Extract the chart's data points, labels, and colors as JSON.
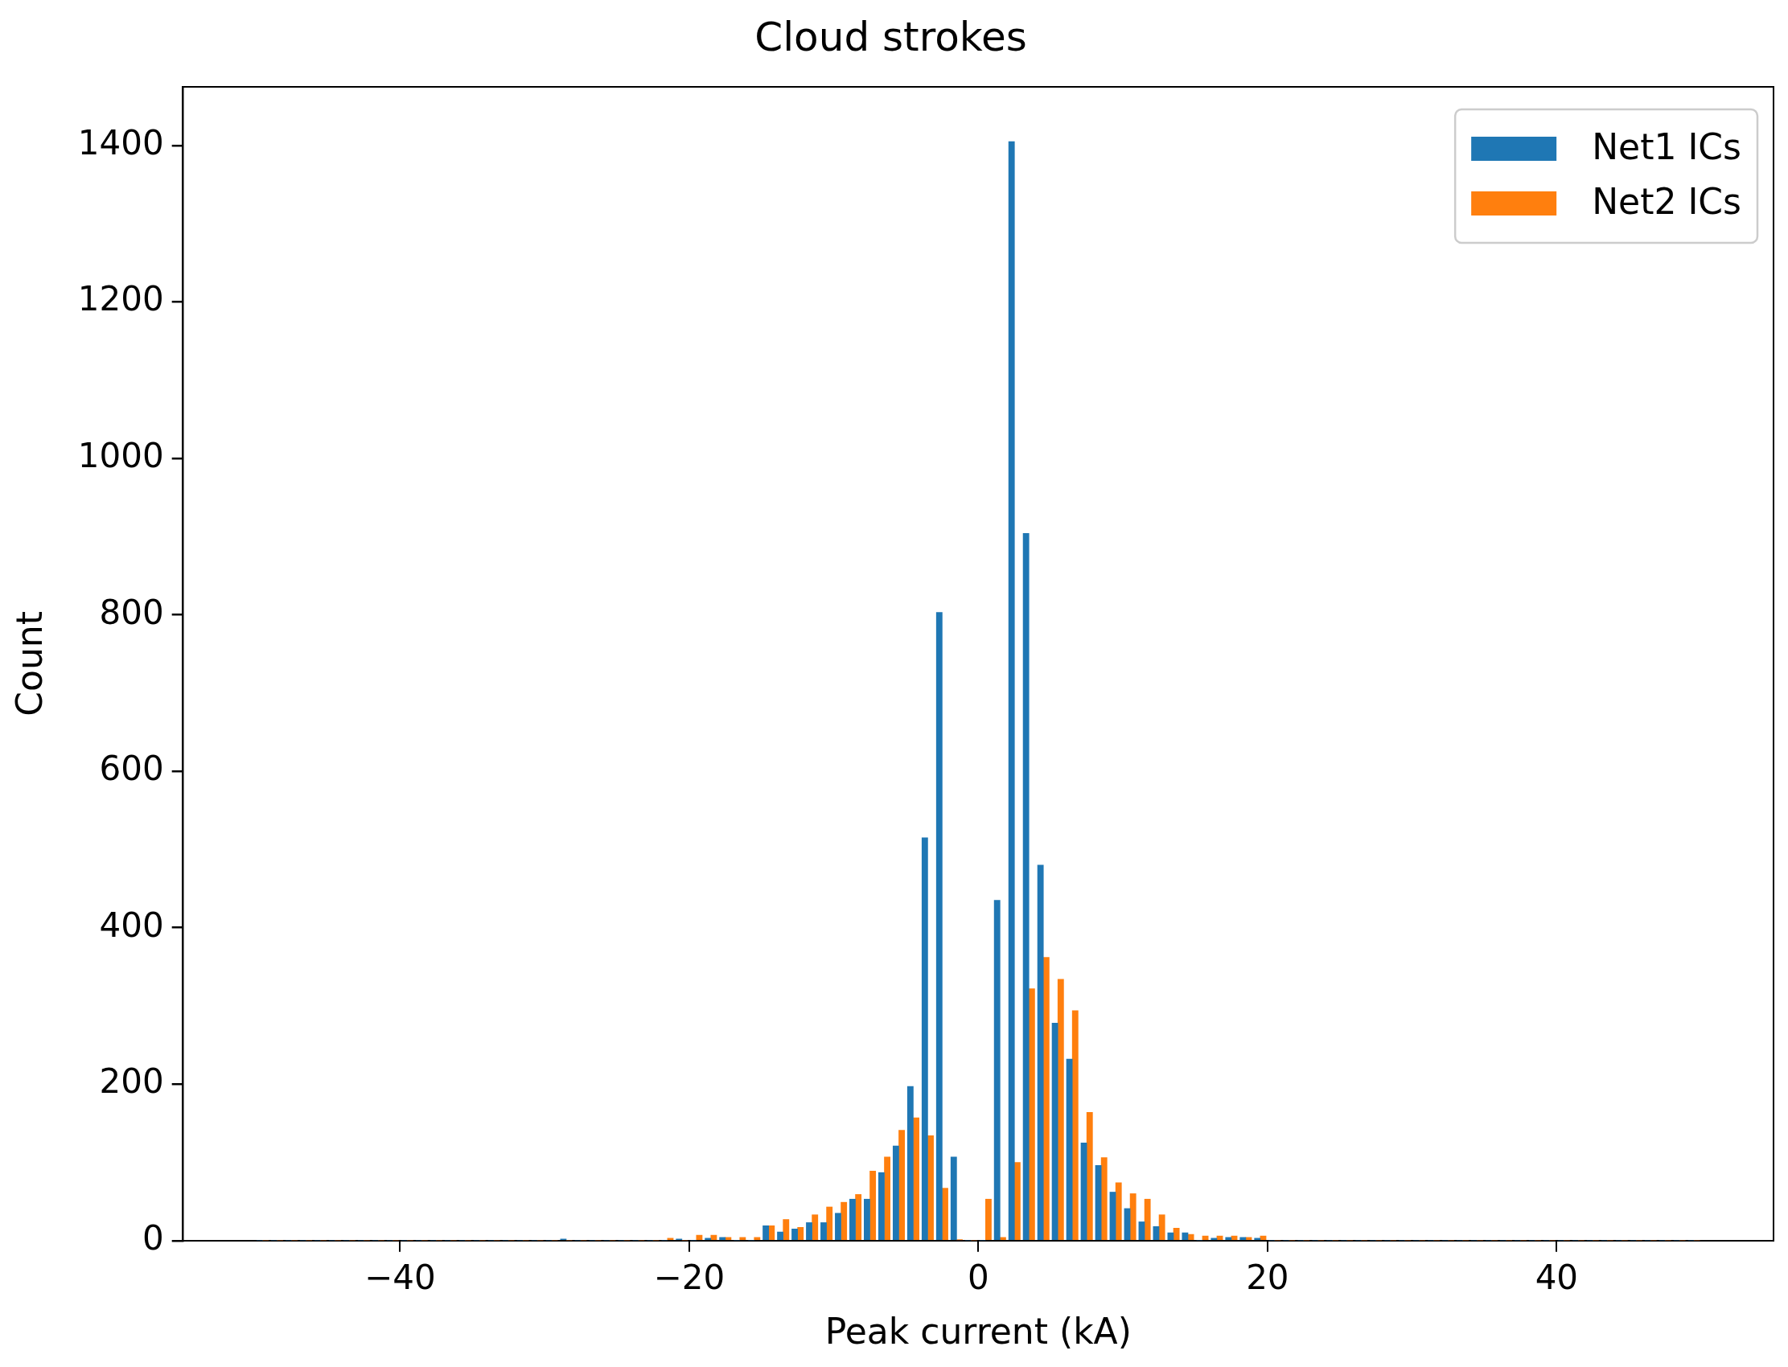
{
  "chart_data": {
    "type": "histogram",
    "title": "Cloud strokes",
    "xlabel": "Peak current (kA)",
    "ylabel": "Count",
    "bins": [
      -50,
      -49,
      -48,
      -47,
      -46,
      -45,
      -44,
      -43,
      -42,
      -41,
      -40,
      -39,
      -38,
      -37,
      -36,
      -35,
      -34,
      -33,
      -32,
      -31,
      -30,
      -29,
      -28,
      -27,
      -26,
      -25,
      -24,
      -23,
      -22,
      -21,
      -20,
      -19,
      -18,
      -17,
      -16,
      -15,
      -14,
      -13,
      -12,
      -11,
      -10,
      -9,
      -8,
      -7,
      -6,
      -5,
      -4,
      -3,
      -2,
      -1,
      0,
      1,
      2,
      3,
      4,
      5,
      6,
      7,
      8,
      9,
      10,
      11,
      12,
      13,
      14,
      15,
      16,
      17,
      18,
      19,
      20,
      21,
      22,
      23,
      24,
      25,
      26,
      27,
      28,
      29,
      30,
      31,
      32,
      33,
      34,
      35,
      36,
      37,
      38,
      39,
      40,
      41,
      42,
      43,
      44,
      45,
      46,
      47,
      48,
      49,
      50
    ],
    "series": [
      {
        "name": "Net1 ICs",
        "color": "#1f77b4",
        "values": [
          0,
          0,
          0,
          0,
          0,
          0,
          0,
          0,
          0,
          0,
          0,
          0,
          0,
          0,
          0,
          0,
          0,
          0,
          0,
          0,
          0,
          2,
          0,
          0,
          0,
          0,
          0,
          0,
          0,
          2,
          0,
          3,
          4,
          0,
          0,
          19,
          11,
          15,
          23,
          23,
          35,
          53,
          53,
          87,
          121,
          197,
          515,
          803,
          107,
          0,
          0,
          435,
          1405,
          904,
          480,
          278,
          232,
          125,
          96,
          62,
          41,
          24,
          18,
          10,
          10,
          0,
          3,
          4,
          4,
          3,
          0,
          0,
          0,
          0,
          0,
          0,
          0,
          0,
          0,
          0,
          0,
          0,
          0,
          0,
          0,
          0,
          0,
          0,
          0,
          0,
          0,
          0,
          0,
          0,
          0,
          0,
          0,
          0,
          0,
          0
        ]
      },
      {
        "name": "Net2 ICs",
        "color": "#ff7f0e",
        "values": [
          0,
          0,
          0,
          0,
          0,
          0,
          0,
          0,
          0,
          0,
          0,
          0,
          0,
          0,
          0,
          0,
          0,
          0,
          0,
          0,
          0,
          0,
          0,
          0,
          0,
          0,
          0,
          0,
          3,
          0,
          7,
          7,
          4,
          4,
          4,
          19,
          27,
          17,
          33,
          43,
          49,
          59,
          89,
          107,
          141,
          157,
          134,
          67,
          1,
          0,
          53,
          4,
          100,
          322,
          362,
          334,
          294,
          164,
          106,
          74,
          60,
          53,
          33,
          16,
          8,
          6,
          6,
          6,
          4,
          6,
          0,
          0,
          0,
          0,
          0,
          0,
          0,
          0,
          0,
          0,
          0,
          0,
          0,
          0,
          0,
          0,
          0,
          0,
          0,
          0,
          0,
          0,
          0,
          0,
          0,
          0,
          0,
          0,
          0,
          0
        ]
      }
    ],
    "xlim": [
      -55,
      55
    ],
    "xticks": [
      {
        "value": -40,
        "label": "−40"
      },
      {
        "value": -20,
        "label": "−20"
      },
      0,
      20,
      40
    ],
    "ylim": [
      0,
      1475
    ],
    "yticks": [
      0,
      200,
      400,
      600,
      800,
      1000,
      1200,
      1400
    ],
    "grid": false,
    "legend": "top right"
  }
}
